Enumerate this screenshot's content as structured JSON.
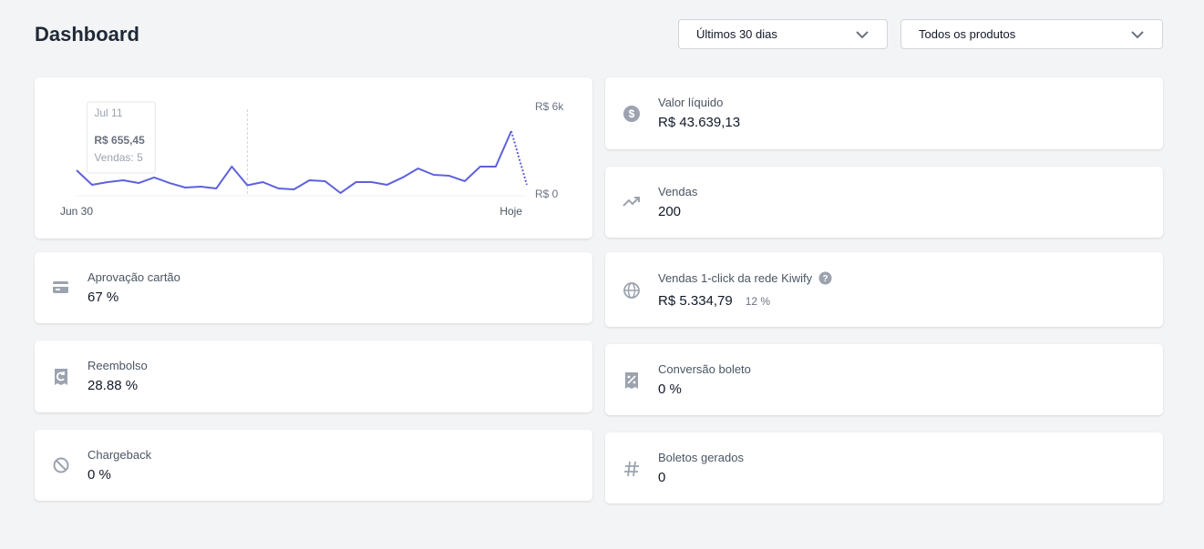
{
  "header": {
    "title": "Dashboard",
    "filters": [
      "Últimos 30 dias",
      "Todos os produtos"
    ]
  },
  "chart_data": {
    "type": "line",
    "categories": [
      "Jun 30",
      null,
      null,
      null,
      null,
      null,
      null,
      null,
      null,
      null,
      null,
      "Jul 11",
      null,
      null,
      null,
      null,
      null,
      null,
      null,
      null,
      null,
      null,
      null,
      null,
      null,
      null,
      null,
      null,
      null,
      "Hoje"
    ],
    "series": [
      {
        "name": "Vendas",
        "color": "#5f61dc",
        "values": [
          1690,
          690,
          875,
          1000,
          810,
          1190,
          810,
          500,
          560,
          440,
          1940,
          655.45,
          875,
          440,
          375,
          1000,
          940,
          125,
          875,
          875,
          690,
          1190,
          1810,
          1375,
          1310,
          940,
          1940,
          1940,
          4375,
          690
        ]
      }
    ],
    "ylim": [
      0,
      6000
    ],
    "yticks": [
      {
        "value": 0,
        "label": "R$ 0"
      },
      {
        "value": 6000,
        "label": "R$ 6k"
      }
    ],
    "last_segment_dashed": true,
    "tooltip": {
      "value_label": "R$ 655,45",
      "detail": "Vendas: 5"
    }
  },
  "cards_left": [
    {
      "label": "Aprovação cartão",
      "value": "67 %"
    },
    {
      "label": "Reembolso",
      "value": "28.88 %"
    },
    {
      "label": "Chargeback",
      "value": "0 %"
    }
  ],
  "cards_right": [
    {
      "label": "Valor líquido",
      "value": "R$ 43.639,13"
    },
    {
      "label": "Vendas",
      "value": "200"
    },
    {
      "label": "Vendas 1-click da rede Kiwify",
      "value": "R$ 5.334,79",
      "share": "12 %"
    },
    {
      "label": "Conversão boleto",
      "value": "0 %"
    },
    {
      "label": "Boletos gerados",
      "value": "0"
    }
  ]
}
